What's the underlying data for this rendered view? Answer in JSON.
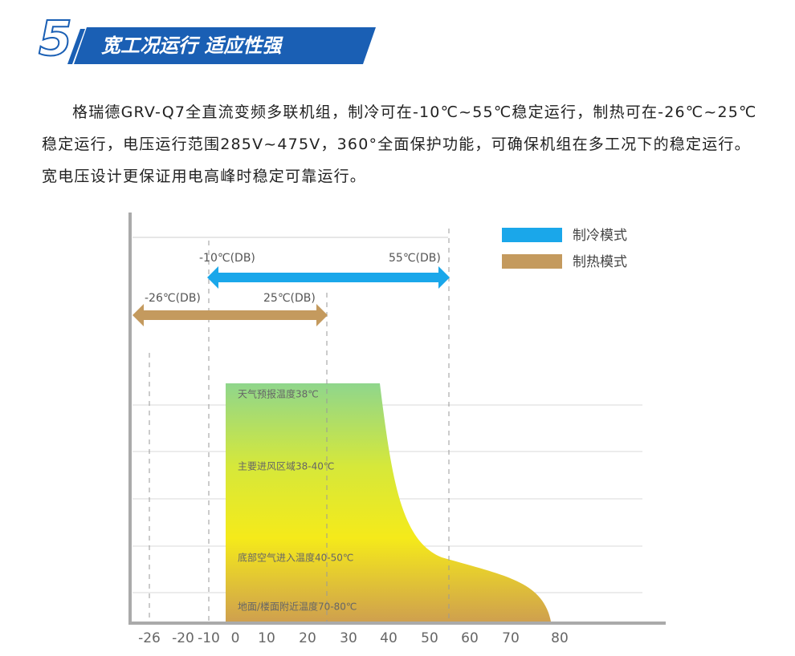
{
  "header": {
    "number": "5",
    "title": "宽工况运行 适应性强"
  },
  "paragraph": "格瑞德GRV-Q7全直流变频多联机组，制冷可在-10℃~55℃稳定运行，制热可在-26℃~25℃稳定运行，电压运行范围285V~475V，360°全面保护功能，可确保机组在多工况下的稳定运行。宽电压设计更保证用电高峰时稳定可靠运行。",
  "diagram": {
    "legend": [
      "制冷模式",
      "制热模式"
    ],
    "cooling": {
      "min_label": "-10℃(DB)",
      "max_label": "55℃(DB)"
    },
    "heating": {
      "min_label": "-26℃(DB)",
      "max_label": "25℃(DB)"
    },
    "zones": [
      "天气预报温度38℃",
      "主要进风区域38-40℃",
      "底部空气进入温度40-50℃",
      "地面/楼面附近温度70-80℃"
    ],
    "xticks": [
      "-26",
      "-20",
      "-10",
      "0",
      "10",
      "20",
      "30",
      "40",
      "50",
      "60",
      "70",
      "80"
    ]
  }
}
